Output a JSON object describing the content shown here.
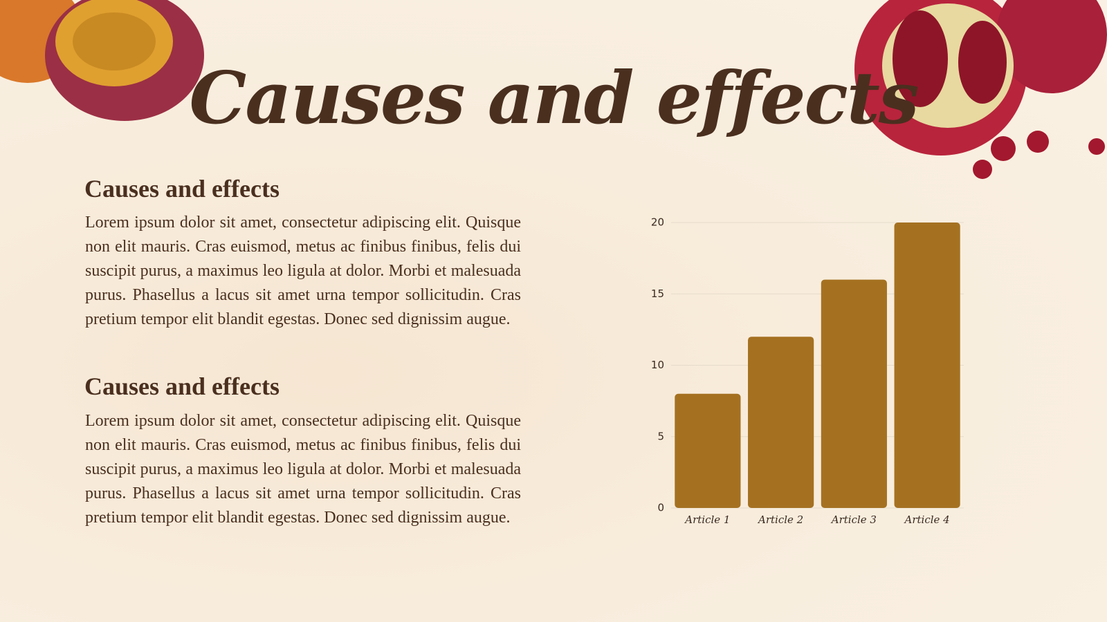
{
  "title": "Causes and effects",
  "sections": [
    {
      "heading": "Causes and effects",
      "body": "Lorem ipsum dolor sit amet, consectetur adipiscing elit. Quisque non elit mauris. Cras euismod, metus ac finibus finibus, felis dui suscipit purus, a maximus leo ligula at dolor. Morbi et malesuada purus. Phasellus a lacus sit amet urna tempor sollicitudin. Cras pretium tempor elit blandit egestas. Donec sed dignissim augue."
    },
    {
      "heading": "Causes and effects",
      "body": "Lorem ipsum dolor sit amet, consectetur adipiscing elit. Quisque non elit mauris. Cras euismod, metus ac finibus finibus, felis dui suscipit purus, a maximus leo ligula at dolor. Morbi et malesuada purus. Phasellus a lacus sit amet urna tempor sollicitudin. Cras pretium tempor elit blandit egestas. Donec sed dignissim augue."
    }
  ],
  "chart_data": {
    "type": "bar",
    "categories": [
      "Article 1",
      "Article 2",
      "Article 3",
      "Article 4"
    ],
    "values": [
      8,
      12,
      16,
      20
    ],
    "color": "#a57121",
    "ylim": [
      0,
      20
    ],
    "yticks": [
      0,
      5,
      10,
      15,
      20
    ],
    "grid": true
  }
}
